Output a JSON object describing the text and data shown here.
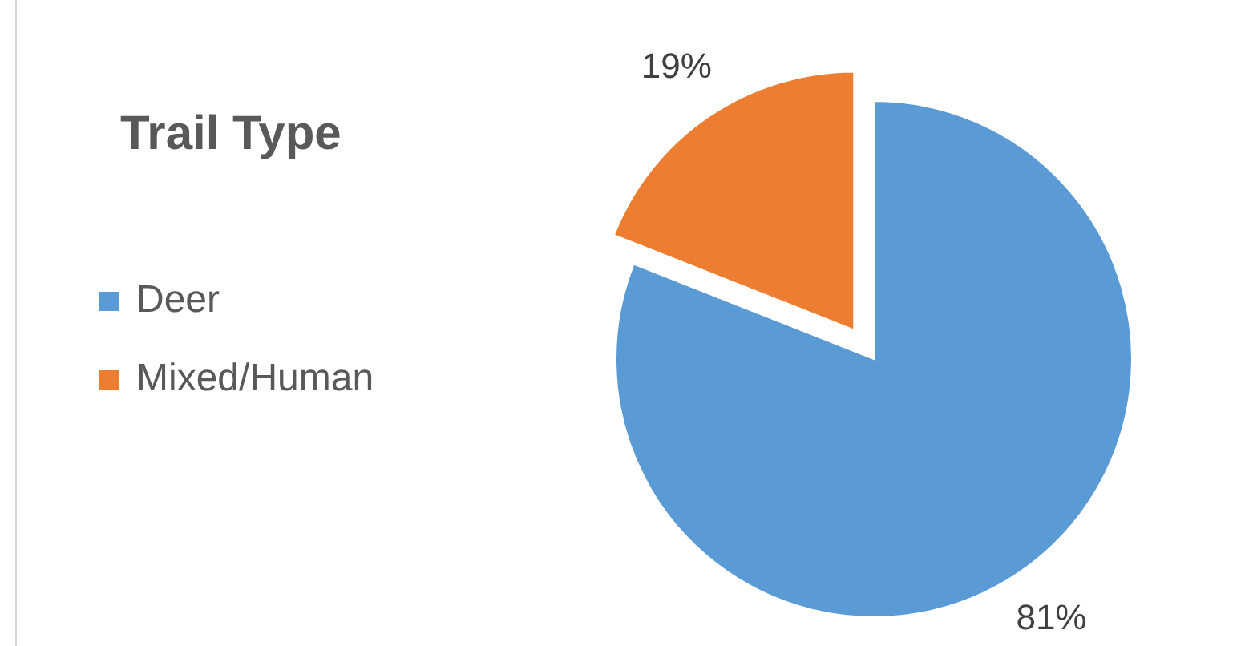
{
  "chart_data": {
    "type": "pie",
    "title": "Trail Type",
    "categories": [
      "Deer",
      "Mixed/Human"
    ],
    "values": [
      81,
      19
    ],
    "colors": [
      "#5b9bd5",
      "#ed7d31"
    ],
    "value_labels": [
      "81%",
      "19%"
    ],
    "legend": "left"
  }
}
